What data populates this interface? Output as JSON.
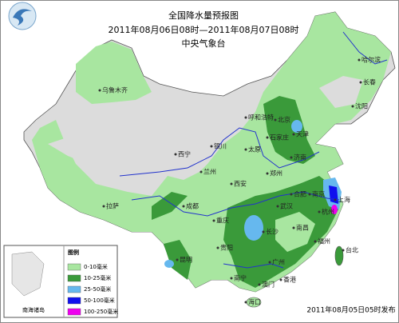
{
  "header": {
    "title": "全国降水量预报图",
    "subtitle": "2011年08月06日08时—2011年08月07日08时",
    "agency": "中央气象台"
  },
  "legend": {
    "title": "图例",
    "items": [
      {
        "label": "0-10毫米",
        "color": "#a8e6a0"
      },
      {
        "label": "10-25毫米",
        "color": "#3a9a3a"
      },
      {
        "label": "25-50毫米",
        "color": "#66b8ee"
      },
      {
        "label": "50-100毫米",
        "color": "#1010ee"
      },
      {
        "label": "100-250毫米",
        "color": "#ee00ee"
      }
    ]
  },
  "inset_label": "南海诸岛",
  "cities": [
    "乌鲁木齐",
    "拉萨",
    "西宁",
    "兰州",
    "银川",
    "呼和浩特",
    "北京",
    "天津",
    "石家庄",
    "太原",
    "济南",
    "郑州",
    "西安",
    "成都",
    "重庆",
    "贵阳",
    "昆明",
    "南宁",
    "广州",
    "香港",
    "澳门",
    "海口",
    "长沙",
    "武汉",
    "南昌",
    "合肥",
    "南京",
    "上海",
    "杭州",
    "福州",
    "台北",
    "沈阳",
    "长春",
    "哈尔滨"
  ],
  "footer": "2011年08月05日05时发布"
}
